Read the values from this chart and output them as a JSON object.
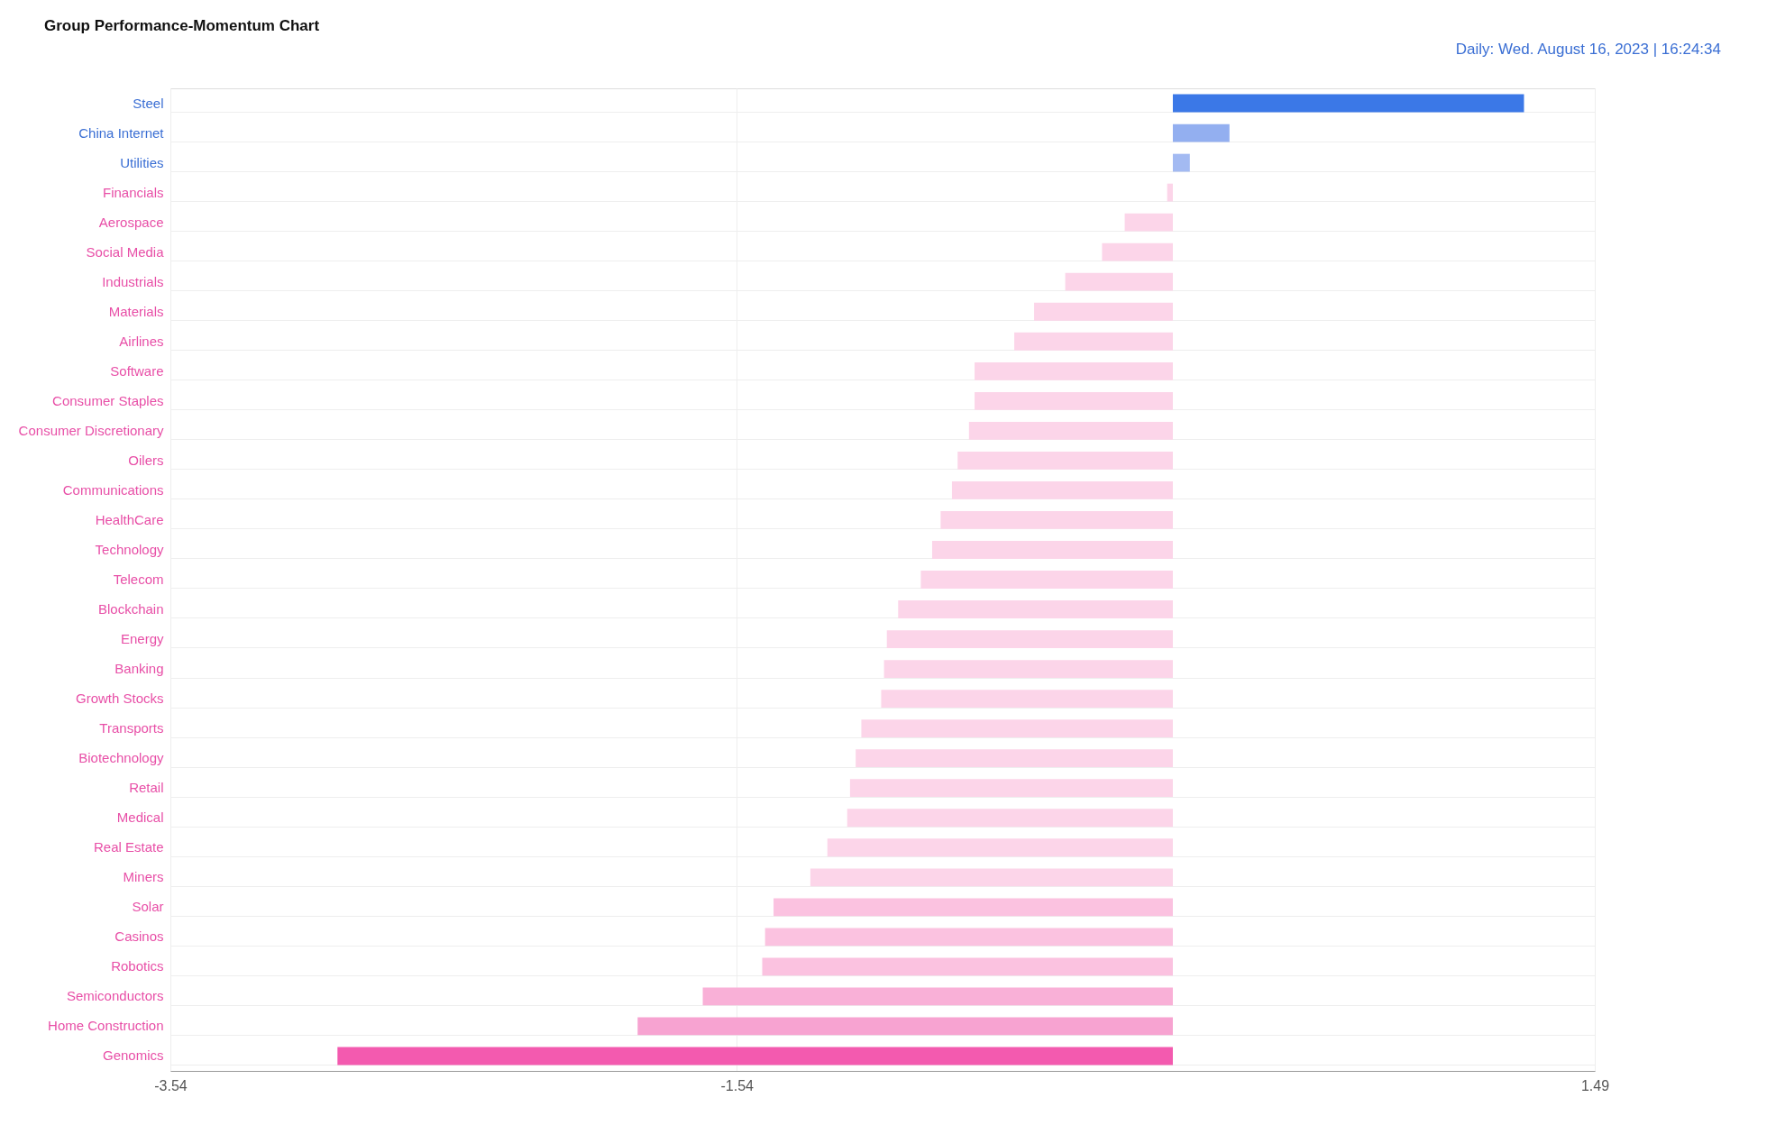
{
  "chart_data": {
    "type": "bar",
    "orientation": "horizontal",
    "title": "Group Performance-Momentum Chart",
    "subtitle": "Daily: Wed. August 16, 2023 | 16:24:34",
    "categories": [
      "Steel",
      "China Internet",
      "Utilities",
      "Financials",
      "Aerospace",
      "Social Media",
      "Industrials",
      "Materials",
      "Airlines",
      "Software",
      "Consumer Staples",
      "Consumer Discretionary",
      "Oilers",
      "Communications",
      "HealthCare",
      "Technology",
      "Telecom",
      "Blockchain",
      "Energy",
      "Banking",
      "Growth Stocks",
      "Transports",
      "Biotechnology",
      "Retail",
      "Medical",
      "Real Estate",
      "Miners",
      "Solar",
      "Casinos",
      "Robotics",
      "Semiconductors",
      "Home Construction",
      "Genomics"
    ],
    "values": [
      1.24,
      0.2,
      0.06,
      -0.02,
      -0.17,
      -0.25,
      -0.38,
      -0.49,
      -0.56,
      -0.7,
      -0.7,
      -0.72,
      -0.76,
      -0.78,
      -0.82,
      -0.85,
      -0.89,
      -0.97,
      -1.01,
      -1.02,
      -1.03,
      -1.1,
      -1.12,
      -1.14,
      -1.15,
      -1.22,
      -1.28,
      -1.41,
      -1.44,
      -1.45,
      -1.66,
      -1.89,
      -2.95
    ],
    "colors": [
      "#3b78e7",
      "#93aff0",
      "#a3baf2",
      "#fcd5e9",
      "#fcd5e9",
      "#fcd5e9",
      "#fcd5e9",
      "#fcd5e9",
      "#fcd5e9",
      "#fcd5e9",
      "#fcd5e9",
      "#fcd5e9",
      "#fcd5e9",
      "#fcd5e9",
      "#fcd5e9",
      "#fcd5e9",
      "#fcd5e9",
      "#fcd5e9",
      "#fcd5e9",
      "#fcd5e9",
      "#fcd5e9",
      "#fcd5e9",
      "#fcd5e9",
      "#fcd5e9",
      "#fcd5e9",
      "#fcd5e9",
      "#fcd5e9",
      "#fbc2e0",
      "#fbc2e0",
      "#fbc2e0",
      "#f9b0d7",
      "#f7a3d1",
      "#f35aaf"
    ],
    "xlim": [
      -3.54,
      1.49
    ],
    "xticks": [
      -3.54,
      -1.54,
      1.49
    ],
    "grid": true
  }
}
